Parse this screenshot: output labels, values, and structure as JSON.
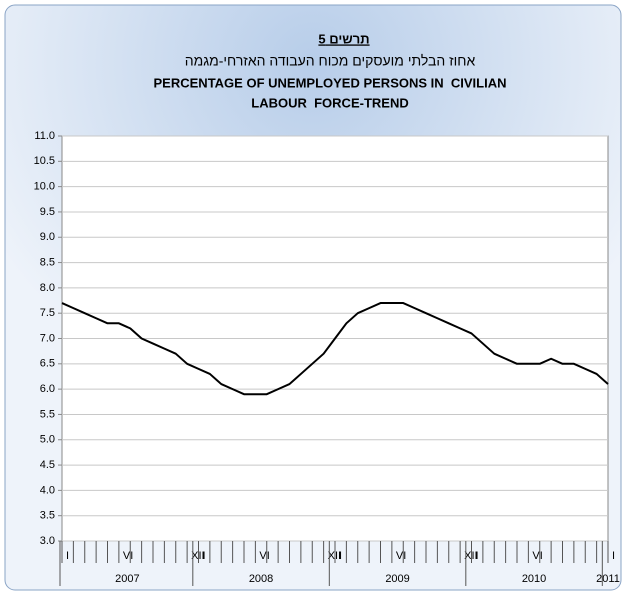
{
  "chart_data": {
    "type": "line",
    "chart_label": "תרשים 5",
    "title_he": "אחוז הבלתי מועסקים מכוח העבודה האזרחי-מגמה",
    "title": [
      "PERCENTAGE OF UNEMPLOYED PERSONS IN  CIVILIAN",
      "LABOUR  FORCE-TREND"
    ],
    "categories": [
      "I",
      null,
      null,
      null,
      null,
      "VI",
      null,
      null,
      null,
      null,
      null,
      "XII",
      "I",
      null,
      null,
      null,
      null,
      "VI",
      null,
      null,
      null,
      null,
      null,
      "XII",
      "I",
      null,
      null,
      null,
      null,
      "VI",
      null,
      null,
      null,
      null,
      null,
      "XII",
      "I",
      null,
      null,
      null,
      null,
      "VI",
      null,
      null,
      null,
      null,
      null,
      null,
      "I"
    ],
    "years": [
      "2007",
      "2008",
      "2009",
      "2010",
      "2011"
    ],
    "values": [
      7.7,
      7.6,
      7.5,
      7.4,
      7.3,
      7.3,
      7.2,
      7.0,
      6.9,
      6.8,
      6.7,
      6.5,
      6.4,
      6.3,
      6.1,
      6.0,
      5.9,
      5.9,
      5.9,
      6.0,
      6.1,
      6.3,
      6.5,
      6.7,
      7.0,
      7.3,
      7.5,
      7.6,
      7.7,
      7.7,
      7.7,
      7.6,
      7.5,
      7.4,
      7.3,
      7.2,
      7.1,
      6.9,
      6.7,
      6.6,
      6.5,
      6.5,
      6.5,
      6.6,
      6.5,
      6.5,
      6.4,
      6.3,
      6.1
    ],
    "color": "#000000",
    "ylim": [
      3,
      11
    ],
    "yticks": [
      {
        "value": 3,
        "label": "3.0"
      },
      3.5,
      {
        "value": 4,
        "label": "4.0"
      },
      4.5,
      {
        "value": 5,
        "label": "5.0"
      },
      5.5,
      {
        "value": 6,
        "label": "6.0"
      },
      6.5,
      {
        "value": 7,
        "label": "7.0"
      },
      7.5,
      {
        "value": 8,
        "label": "8.0"
      },
      8.5,
      {
        "value": 9,
        "label": "9.0"
      },
      9.5,
      {
        "value": 10,
        "label": "10.0"
      },
      10.5,
      {
        "value": 11,
        "label": "11.0"
      }
    ],
    "grid": true
  }
}
